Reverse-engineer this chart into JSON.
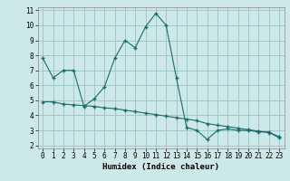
{
  "xlabel": "Humidex (Indice chaleur)",
  "bg_color": "#cce8e8",
  "grid_color": "#a0c8c8",
  "line_color": "#1a6b6b",
  "xlim": [
    -0.5,
    23.5
  ],
  "ylim": [
    1.8,
    11.2
  ],
  "yticks": [
    2,
    3,
    4,
    5,
    6,
    7,
    8,
    9,
    10,
    11
  ],
  "xticks": [
    0,
    1,
    2,
    3,
    4,
    5,
    6,
    7,
    8,
    9,
    10,
    11,
    12,
    13,
    14,
    15,
    16,
    17,
    18,
    19,
    20,
    21,
    22,
    23
  ],
  "line1_x": [
    0,
    1,
    2,
    3,
    4,
    5,
    6,
    7,
    8,
    9,
    10,
    11,
    12,
    13,
    14,
    15,
    16,
    17,
    18,
    19,
    20,
    21,
    22,
    23
  ],
  "line1_y": [
    7.8,
    6.5,
    7.0,
    7.0,
    4.6,
    5.1,
    5.9,
    7.8,
    9.0,
    8.5,
    9.9,
    10.8,
    10.0,
    6.5,
    3.2,
    3.0,
    2.4,
    3.0,
    3.1,
    3.0,
    3.0,
    2.9,
    2.9,
    2.5
  ],
  "line2_x": [
    0,
    1,
    2,
    3,
    4,
    5,
    6,
    7,
    8,
    9,
    10,
    11,
    12,
    13,
    14,
    15,
    16,
    17,
    18,
    19,
    20,
    21,
    22,
    23
  ],
  "line2_y": [
    4.9,
    4.9,
    4.75,
    4.7,
    4.65,
    4.6,
    4.5,
    4.45,
    4.35,
    4.25,
    4.15,
    4.05,
    3.95,
    3.85,
    3.75,
    3.65,
    3.45,
    3.35,
    3.25,
    3.15,
    3.05,
    2.95,
    2.85,
    2.6
  ],
  "tick_labelsize": 5.5,
  "xlabel_fontsize": 6.5
}
